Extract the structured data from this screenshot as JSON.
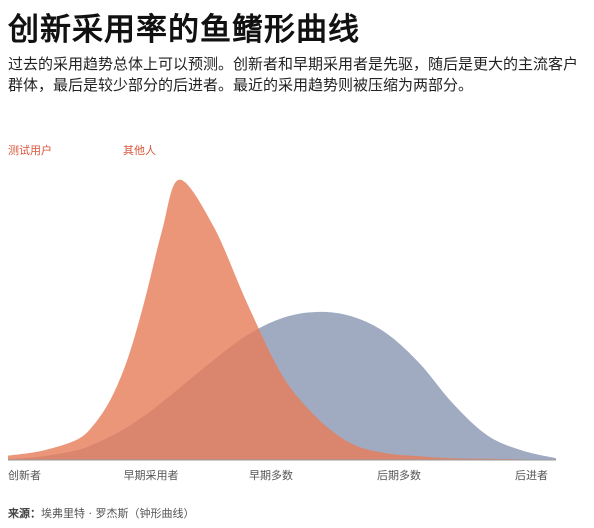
{
  "title": "创新采用率的鱼鳍形曲线",
  "subtitle": "过去的采用趋势总体上可以预测。创新者和早期采用者是先驱，随后是更大的主流客户群体，最后是较少部分的后进者。最近的采用趋势则被压缩为两部分。",
  "source": {
    "label": "来源：",
    "text": "埃弗里特 · 罗杰斯（钟形曲线）"
  },
  "colors": {
    "testers": "#e67e5c",
    "others": "#8896b3",
    "label_red": "#d9573c"
  },
  "chart_data": {
    "type": "area",
    "categories": [
      "创新者",
      "早期采用者",
      "早期多数",
      "后期多数",
      "后进者"
    ],
    "x": [
      0,
      0.5,
      1,
      1.25,
      1.5,
      1.75,
      2,
      2.25,
      2.5,
      3,
      3.5,
      4,
      4.5,
      5,
      5.5,
      6,
      6.5,
      7,
      7.5,
      8
    ],
    "series": [
      {
        "name": "测试用户",
        "values": [
          1.5,
          3.2,
          6.9,
          12.0,
          20.9,
          34.9,
          55.1,
          78.6,
          96.0,
          80.0,
          53.2,
          29.1,
          14.7,
          5.8,
          2.4,
          1.3,
          0.6,
          0.4,
          0.2,
          0.0
        ]
      },
      {
        "name": "其他人",
        "values": [
          0.3,
          1.2,
          3.3,
          5.4,
          8.1,
          11.4,
          15.3,
          19.8,
          24.6,
          34.2,
          42.9,
          48.6,
          50.7,
          49.3,
          43.8,
          33.3,
          19.2,
          8.4,
          3.3,
          0.6
        ]
      }
    ],
    "ylim": [
      0,
      100
    ],
    "grid": false,
    "legend": "series names placed above the chart, top-left"
  }
}
